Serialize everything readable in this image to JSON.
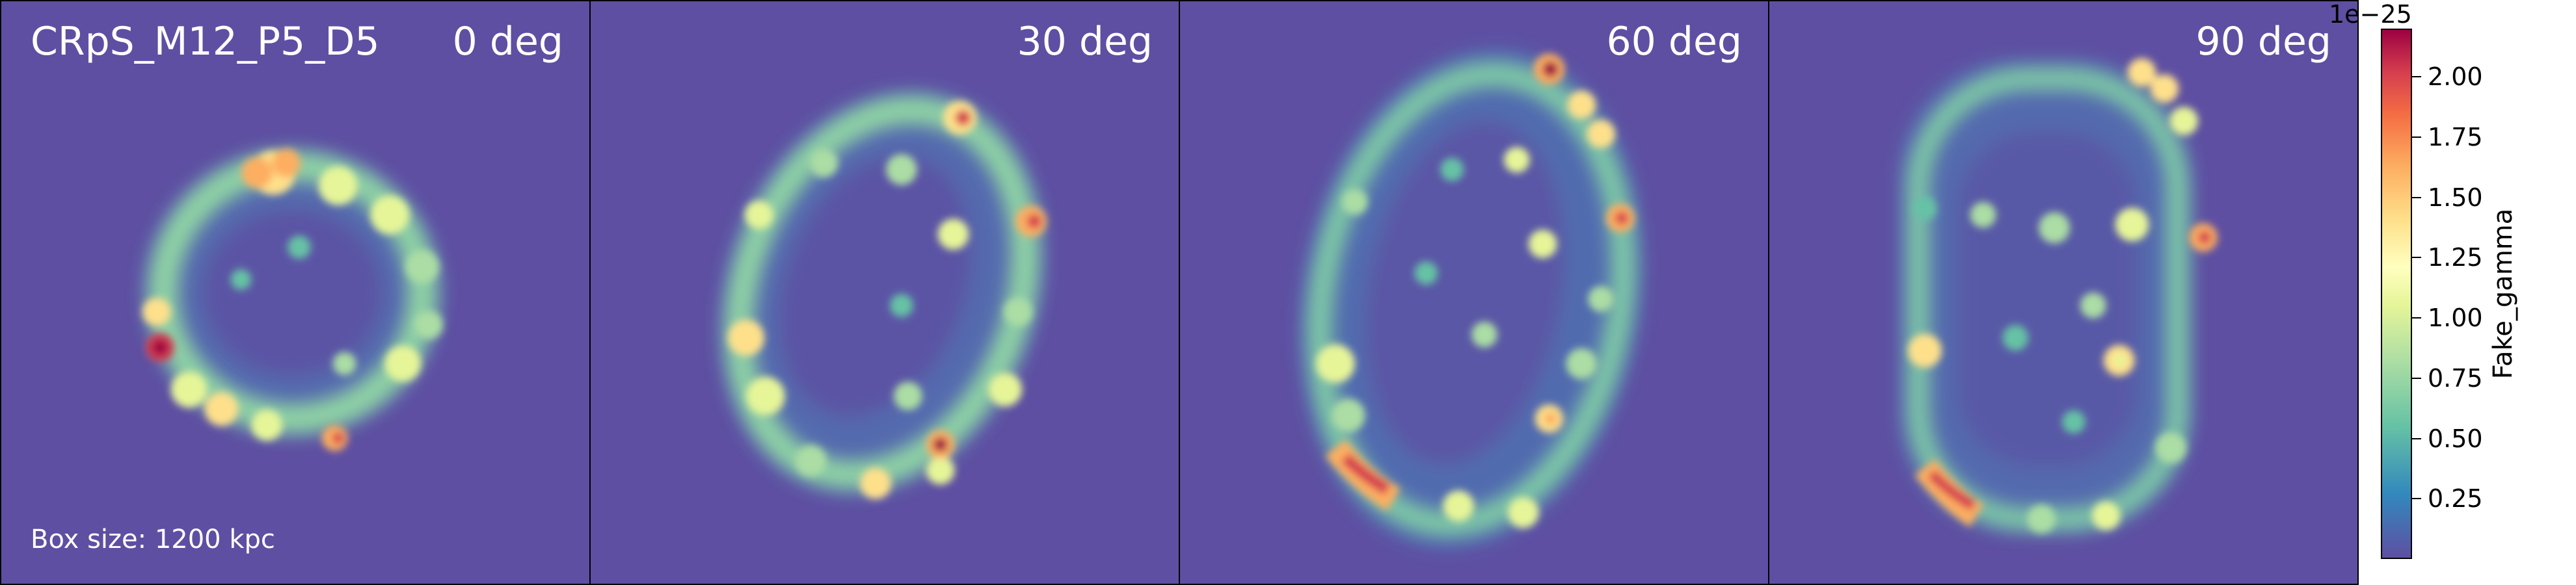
{
  "figure_title": "CRpS_M12_P5_D5",
  "box_size_label": "Box size: 1200 kpc",
  "panels": [
    {
      "angle_label": "0 deg"
    },
    {
      "angle_label": "30 deg"
    },
    {
      "angle_label": "60 deg"
    },
    {
      "angle_label": "90 deg"
    }
  ],
  "colorbar": {
    "label": "Fake_gamma",
    "exponent_label": "1e−25",
    "colormap": "Spectral_r",
    "range": [
      0.0,
      2.2
    ],
    "ticks": [
      "0.25",
      "0.50",
      "0.75",
      "1.00",
      "1.25",
      "1.50",
      "1.75",
      "2.00"
    ],
    "tick_values": [
      0.25,
      0.5,
      0.75,
      1.0,
      1.25,
      1.5,
      1.75,
      2.0
    ]
  },
  "colors": {
    "background": "#5e4fa2",
    "low": "#3288bd",
    "mid": "#ffffbf",
    "high": "#9e0142"
  }
}
